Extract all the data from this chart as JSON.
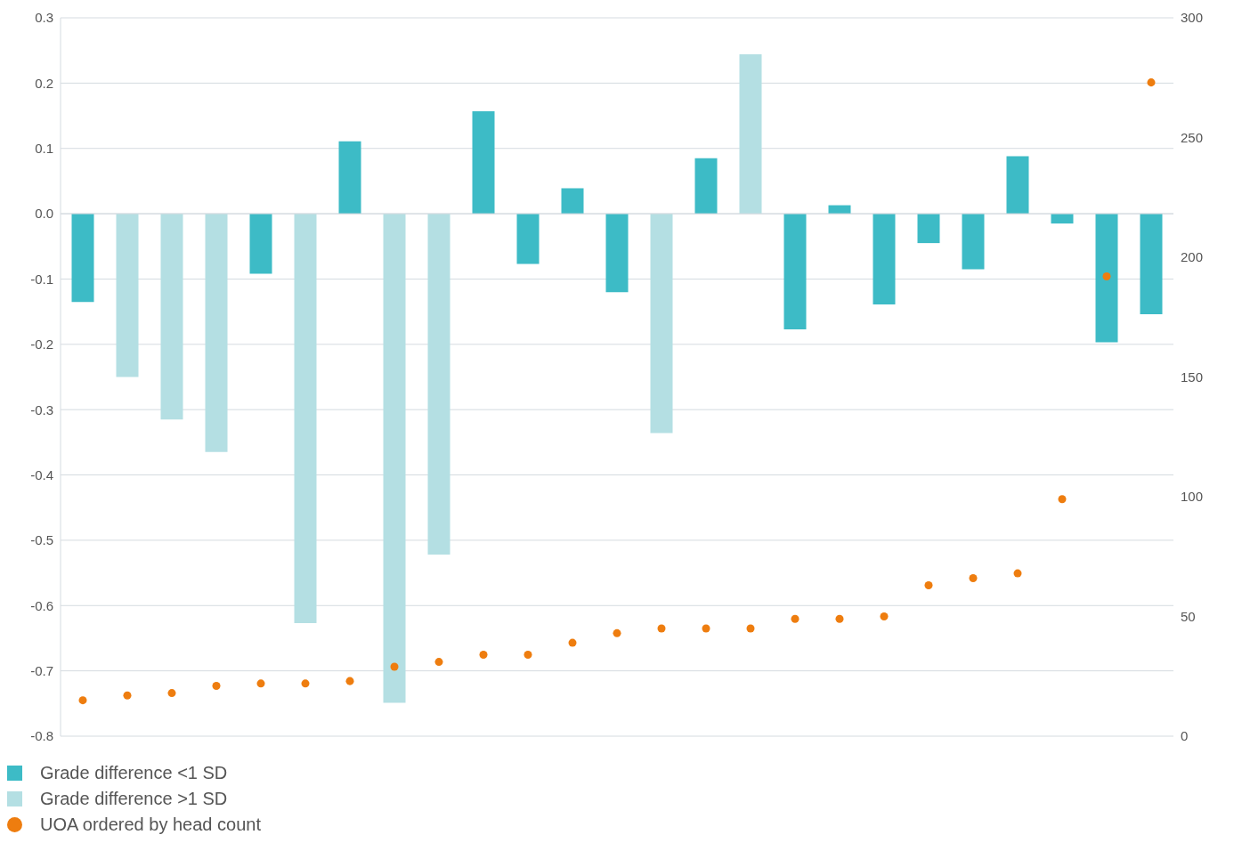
{
  "chart_data": {
    "type": "bar",
    "categories": [
      null,
      null,
      null,
      null,
      null,
      null,
      null,
      null,
      null,
      null,
      null,
      null,
      null,
      null,
      null,
      null,
      null,
      null,
      null,
      null,
      null,
      null,
      null,
      null,
      null
    ],
    "series": [
      {
        "name": "Grade difference <1 SD",
        "color": "#3dbbc6",
        "values": [
          -0.135,
          null,
          null,
          null,
          -0.092,
          null,
          0.111,
          null,
          null,
          0.157,
          -0.077,
          0.039,
          -0.12,
          null,
          0.085,
          null,
          -0.177,
          0.013,
          -0.139,
          -0.045,
          -0.085,
          0.088,
          -0.015,
          -0.197,
          -0.154
        ]
      },
      {
        "name": "Grade difference >1 SD",
        "color": "#b4dfe3",
        "values": [
          null,
          -0.25,
          -0.315,
          -0.365,
          null,
          -0.627,
          null,
          -0.749,
          -0.522,
          null,
          null,
          null,
          null,
          -0.336,
          null,
          0.244,
          null,
          null,
          null,
          null,
          null,
          null,
          null,
          null,
          null
        ]
      },
      {
        "name": "UOA ordered by head count",
        "type": "scatter",
        "axis": "y2",
        "marker": "circle",
        "color": "#ee7d0f",
        "values": [
          15,
          17,
          18,
          21,
          22,
          22,
          23,
          29,
          31,
          34,
          34,
          39,
          43,
          45,
          45,
          45,
          49,
          49,
          50,
          63,
          66,
          68,
          99,
          192,
          273
        ]
      }
    ],
    "ylim": [
      -0.8,
      0.3
    ],
    "yticks": [
      {
        "value": -0.8,
        "label": "-0.8"
      },
      -0.7,
      -0.6,
      -0.5,
      -0.4,
      -0.3,
      -0.2,
      -0.1,
      {
        "value": 0,
        "label": "0.0"
      },
      0.1,
      0.2,
      0.3
    ],
    "y2lim": [
      0,
      300
    ],
    "y2ticks": [
      0,
      50,
      100,
      150,
      200,
      250,
      300
    ],
    "grid": "y",
    "legend": "bottom left"
  }
}
